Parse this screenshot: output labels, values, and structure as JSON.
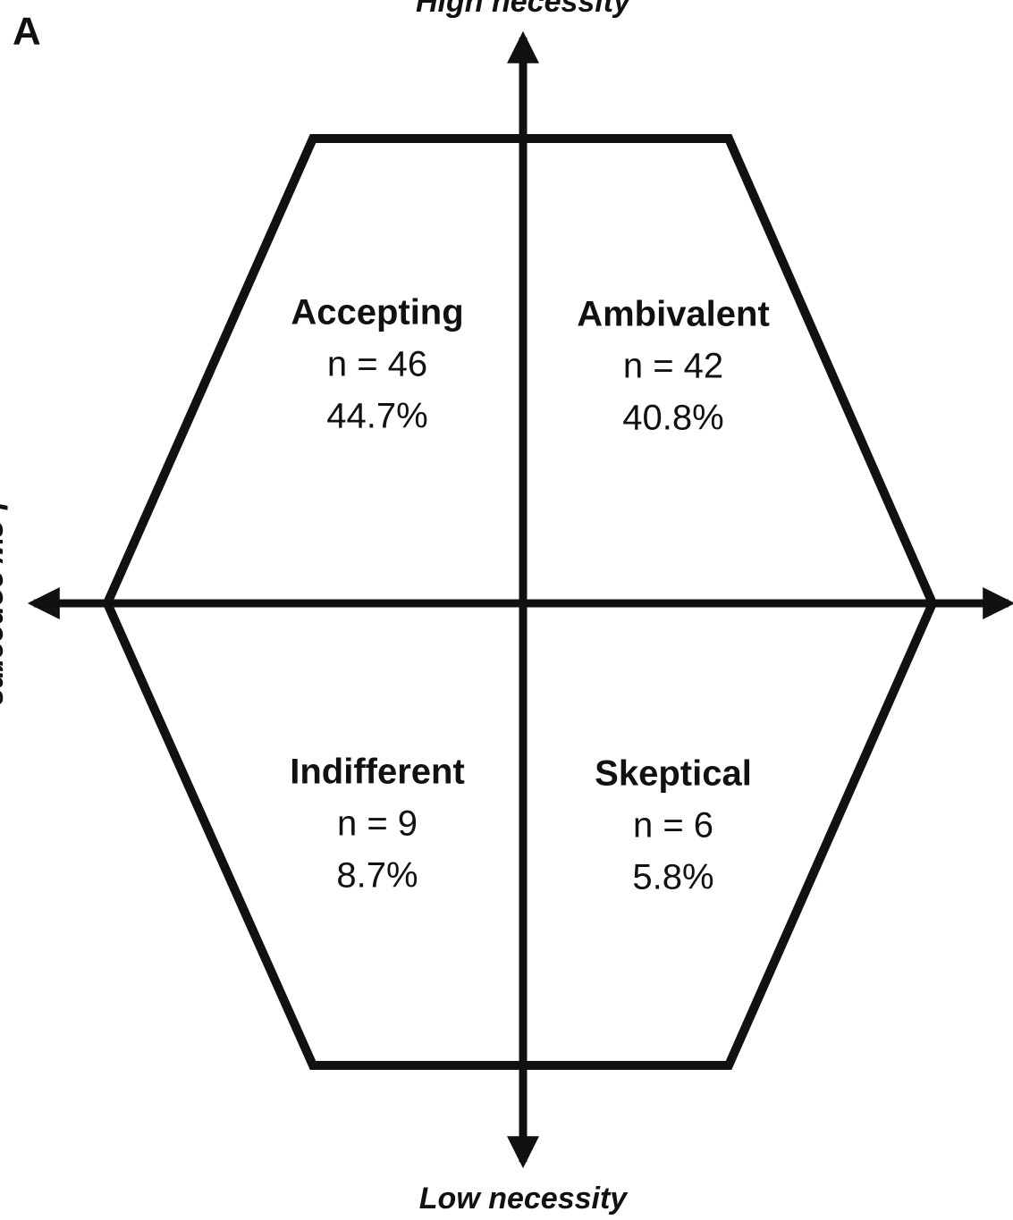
{
  "panel_label": "A",
  "axes": {
    "top": "High necessity",
    "bottom": "Low necessity",
    "left": "Low concerns"
  },
  "quadrants": [
    {
      "name": "Accepting",
      "count": "n = 46",
      "percent": "44.7%"
    },
    {
      "name": "Ambivalent",
      "count": "n = 42",
      "percent": "40.8%"
    },
    {
      "name": "Indifferent",
      "count": "n = 9",
      "percent": "8.7%"
    },
    {
      "name": "Skeptical",
      "count": "n = 6",
      "percent": "5.8%"
    }
  ]
}
